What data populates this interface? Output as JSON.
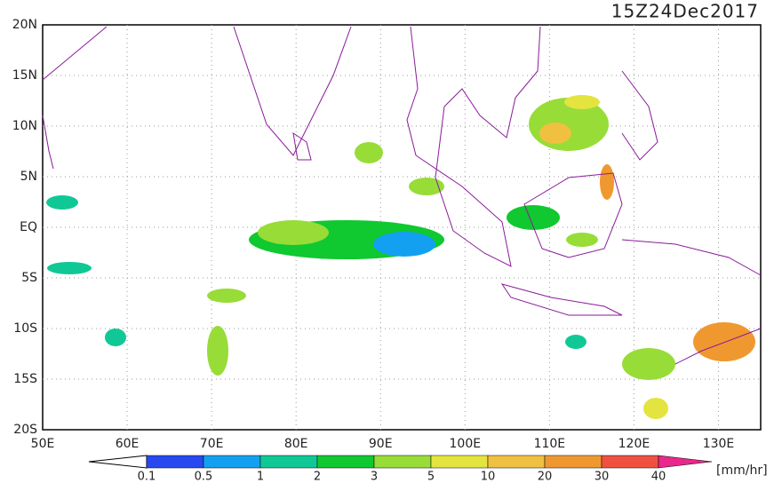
{
  "header": {
    "title": "15Z24Dec2017"
  },
  "map": {
    "lat_labels": [
      "20N",
      "15N",
      "10N",
      "5N",
      "EQ",
      "5S",
      "10S",
      "15S",
      "20S"
    ],
    "lon_labels": [
      "50E",
      "60E",
      "70E",
      "80E",
      "90E",
      "100E",
      "110E",
      "120E",
      "130E"
    ]
  },
  "colorbar": {
    "labels": [
      "0.1",
      "0.5",
      "1",
      "2",
      "3",
      "5",
      "10",
      "20",
      "30",
      "40"
    ],
    "colors": [
      "#2848f0",
      "#14a0f0",
      "#10c896",
      "#10c830",
      "#98dc38",
      "#e4e440",
      "#f0c040",
      "#f09830",
      "#f05040",
      "#e8288c"
    ],
    "unit": "[mm/hr]"
  }
}
